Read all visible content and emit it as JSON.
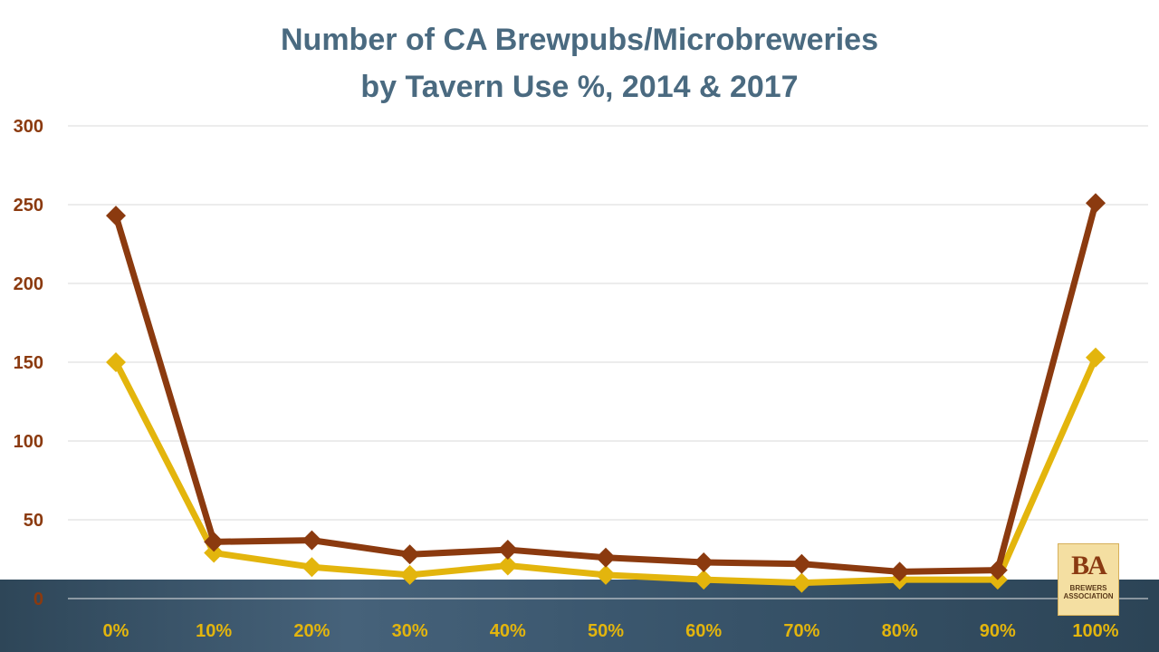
{
  "title_line1": "Number of CA Brewpubs/Microbreweries",
  "title_line2": "by Tavern Use %, 2014 & 2017",
  "logo": {
    "mark": "BA",
    "line1": "BREWERS",
    "line2": "ASSOCIATION"
  },
  "colors": {
    "series_dark": "#8b3a0f",
    "series_light": "#e3b50d",
    "y_tick": "#8b3a0f",
    "x_tick": "#e3b50d",
    "grid": "#d9d9d9"
  },
  "chart_data": {
    "type": "line",
    "title": "Number of CA Brewpubs/Microbreweries by Tavern Use %, 2014 & 2017",
    "categories": [
      "0%",
      "10%",
      "20%",
      "30%",
      "40%",
      "50%",
      "60%",
      "70%",
      "80%",
      "90%",
      "100%"
    ],
    "ylim": [
      0,
      300
    ],
    "yticks": [
      0,
      50,
      100,
      150,
      200,
      250,
      300
    ],
    "grid": true,
    "legend": "none",
    "series": [
      {
        "values": [
          243,
          36,
          37,
          28,
          31,
          26,
          23,
          22,
          17,
          18,
          251
        ],
        "color": "#8b3a0f"
      },
      {
        "values": [
          150,
          29,
          20,
          15,
          21,
          15,
          12,
          10,
          12,
          12,
          153
        ],
        "color": "#e3b50d"
      }
    ]
  }
}
